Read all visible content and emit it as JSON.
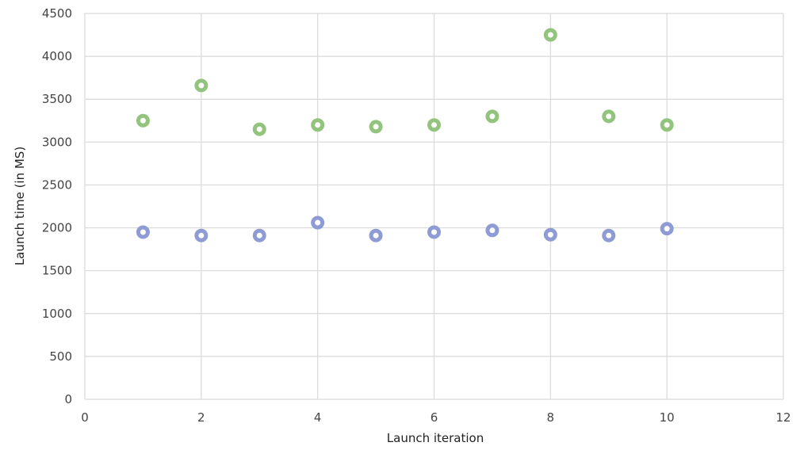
{
  "chart_data": {
    "type": "scatter",
    "title": "",
    "xlabel": "Launch iteration",
    "ylabel": "Launch time (in MS)",
    "xlim": [
      0,
      12
    ],
    "ylim": [
      0,
      4500
    ],
    "x_ticks": [
      "0",
      "2",
      "4",
      "6",
      "8",
      "10",
      "12"
    ],
    "y_ticks": [
      "0",
      "500",
      "1000",
      "1500",
      "2000",
      "2500",
      "3000",
      "3500",
      "4000",
      "4500"
    ],
    "grid": true,
    "legend": "none",
    "series": [
      {
        "color": "#93c47d",
        "points": [
          {
            "x": 1,
            "y": 3250
          },
          {
            "x": 2,
            "y": 3660
          },
          {
            "x": 3,
            "y": 3150
          },
          {
            "x": 4,
            "y": 3200
          },
          {
            "x": 5,
            "y": 3180
          },
          {
            "x": 6,
            "y": 3200
          },
          {
            "x": 7,
            "y": 3300
          },
          {
            "x": 8,
            "y": 4250
          },
          {
            "x": 9,
            "y": 3300
          },
          {
            "x": 10,
            "y": 3200
          }
        ]
      },
      {
        "color": "#8e9bd4",
        "points": [
          {
            "x": 1,
            "y": 1950
          },
          {
            "x": 2,
            "y": 1910
          },
          {
            "x": 3,
            "y": 1910
          },
          {
            "x": 4,
            "y": 2060
          },
          {
            "x": 5,
            "y": 1910
          },
          {
            "x": 6,
            "y": 1950
          },
          {
            "x": 7,
            "y": 1970
          },
          {
            "x": 8,
            "y": 1920
          },
          {
            "x": 9,
            "y": 1910
          },
          {
            "x": 10,
            "y": 1990
          }
        ]
      }
    ]
  }
}
